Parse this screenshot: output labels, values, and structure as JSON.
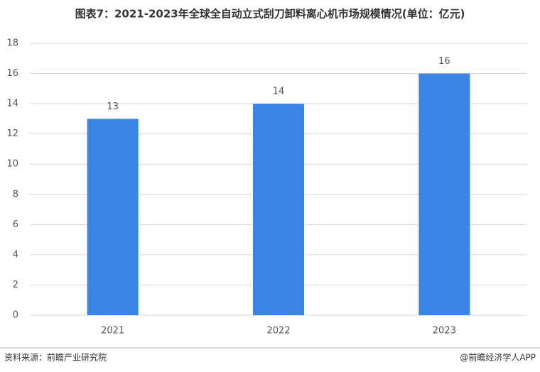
{
  "chart_data": {
    "type": "bar",
    "title": "图表7：2021-2023年全球全自动立式刮刀卸料离心机市场规模情况(单位：亿元)",
    "categories": [
      "2021",
      "2022",
      "2023"
    ],
    "values": [
      13,
      14,
      16
    ],
    "color": "#3a84e6",
    "ylim": [
      0,
      18
    ],
    "yticks": [
      0,
      2,
      4,
      6,
      8,
      10,
      12,
      14,
      16,
      18
    ],
    "grid": true,
    "source": "资料来源：前瞻产业研究院",
    "credit": "@前瞻经济学人APP"
  }
}
